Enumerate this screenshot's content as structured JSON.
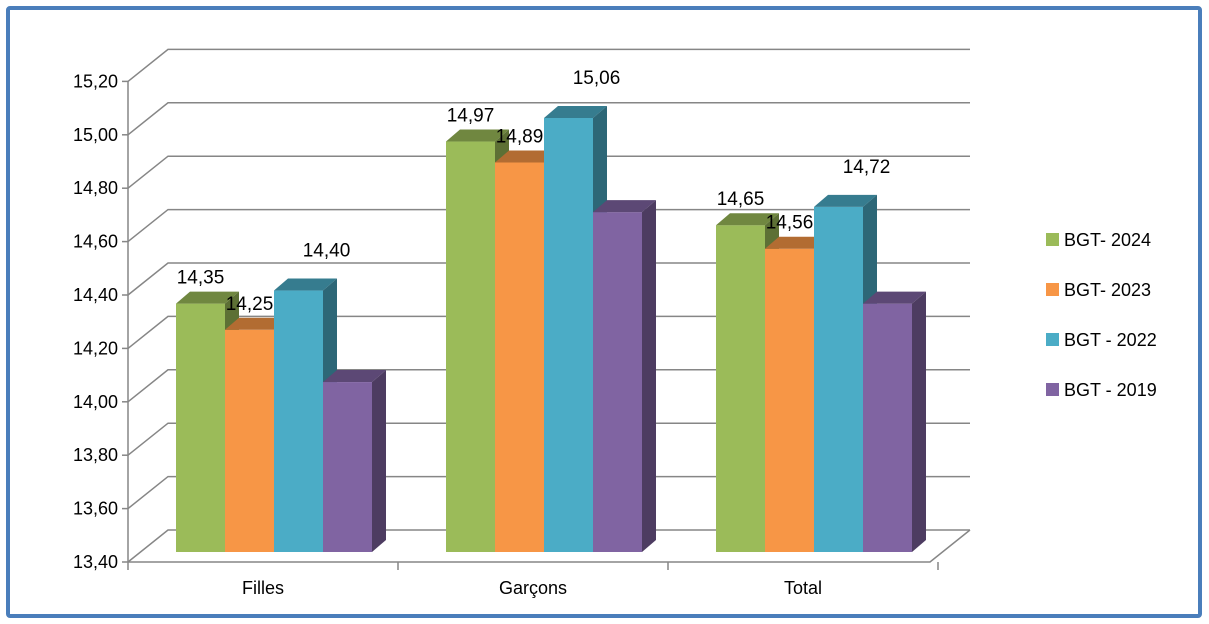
{
  "chart_data": {
    "type": "bar",
    "title": "",
    "xlabel": "",
    "ylabel": "",
    "categories": [
      "Filles",
      "Garçons",
      "Total"
    ],
    "series": [
      {
        "name": "BGT- 2024",
        "color": "#9bbb59",
        "values": [
          14.35,
          14.97,
          14.65
        ],
        "labels": [
          "14,35",
          "14,97",
          "14,65"
        ]
      },
      {
        "name": "BGT- 2023",
        "color": "#f79646",
        "values": [
          14.25,
          14.89,
          14.56
        ],
        "labels": [
          "14,25",
          "14,89",
          "14,56"
        ]
      },
      {
        "name": "BGT - 2022",
        "color": "#4bacc6",
        "values": [
          14.4,
          15.06,
          14.72
        ],
        "labels": [
          "14,40",
          "15,06",
          "14,72"
        ]
      },
      {
        "name": "BGT - 2019",
        "color": "#8064a2",
        "values": [
          14.05,
          14.7,
          14.35
        ],
        "labels": [
          "",
          "",
          ""
        ]
      }
    ],
    "ylim": [
      13.4,
      15.2
    ],
    "yticks": [
      "13,40",
      "13,60",
      "13,80",
      "14,00",
      "14,20",
      "14,40",
      "14,60",
      "14,80",
      "15,00",
      "15,20"
    ],
    "grid": true,
    "legend_position": "right",
    "style": "3d-clustered-column"
  }
}
